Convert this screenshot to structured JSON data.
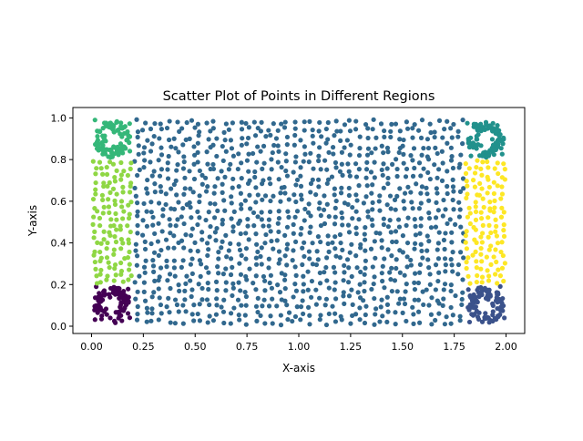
{
  "chart_data": {
    "type": "scatter",
    "title": "Scatter Plot of Points in Different Regions",
    "xlabel": "X-axis",
    "ylabel": "Y-axis",
    "xlim": [
      -0.09,
      2.09
    ],
    "ylim": [
      -0.035,
      1.05
    ],
    "xticks": [
      0.0,
      0.25,
      0.5,
      0.75,
      1.0,
      1.25,
      1.5,
      1.75,
      2.0
    ],
    "xtick_labels": [
      "0.00",
      "0.25",
      "0.50",
      "0.75",
      "1.00",
      "1.25",
      "1.50",
      "1.75",
      "2.00"
    ],
    "yticks": [
      0.0,
      0.2,
      0.4,
      0.6,
      0.8,
      1.0
    ],
    "ytick_labels": [
      "0.0",
      "0.2",
      "0.4",
      "0.6",
      "0.8",
      "1.0"
    ],
    "grid": false,
    "legend": "none",
    "marker_size_pt": 3.0,
    "regions": [
      {
        "id": "interior",
        "color": "#31688e",
        "x_range": [
          0.2,
          1.8
        ],
        "y_range": [
          0.0,
          1.0
        ],
        "count": 1100
      },
      {
        "id": "left-strip",
        "color": "#8fd744",
        "x_range": [
          0.0,
          0.2
        ],
        "y_range": [
          0.2,
          0.8
        ],
        "count": 120
      },
      {
        "id": "right-strip",
        "color": "#fde725",
        "x_range": [
          1.8,
          2.0
        ],
        "y_range": [
          0.2,
          0.8
        ],
        "count": 120
      },
      {
        "id": "bottom-left-ring",
        "color": "#440154",
        "center": [
          0.1,
          0.1
        ],
        "radius_range": [
          0.03,
          0.09
        ],
        "count": 90
      },
      {
        "id": "top-left-ring",
        "color": "#35b779",
        "center": [
          0.1,
          0.9
        ],
        "radius_range": [
          0.03,
          0.09
        ],
        "count": 90
      },
      {
        "id": "bottom-right-ring",
        "color": "#3b528b",
        "center": [
          1.9,
          0.1
        ],
        "radius_range": [
          0.03,
          0.09
        ],
        "count": 90
      },
      {
        "id": "top-right-ring",
        "color": "#21918c",
        "center": [
          1.9,
          0.9
        ],
        "radius_range": [
          0.03,
          0.09
        ],
        "count": 90
      }
    ],
    "corner_fill_colors": [
      {
        "corner": "bottom-left",
        "color": "#440154"
      },
      {
        "corner": "top-left",
        "color": "#35b779"
      },
      {
        "corner": "bottom-right",
        "color": "#3b528b"
      },
      {
        "corner": "top-right",
        "color": "#21918c"
      }
    ]
  }
}
